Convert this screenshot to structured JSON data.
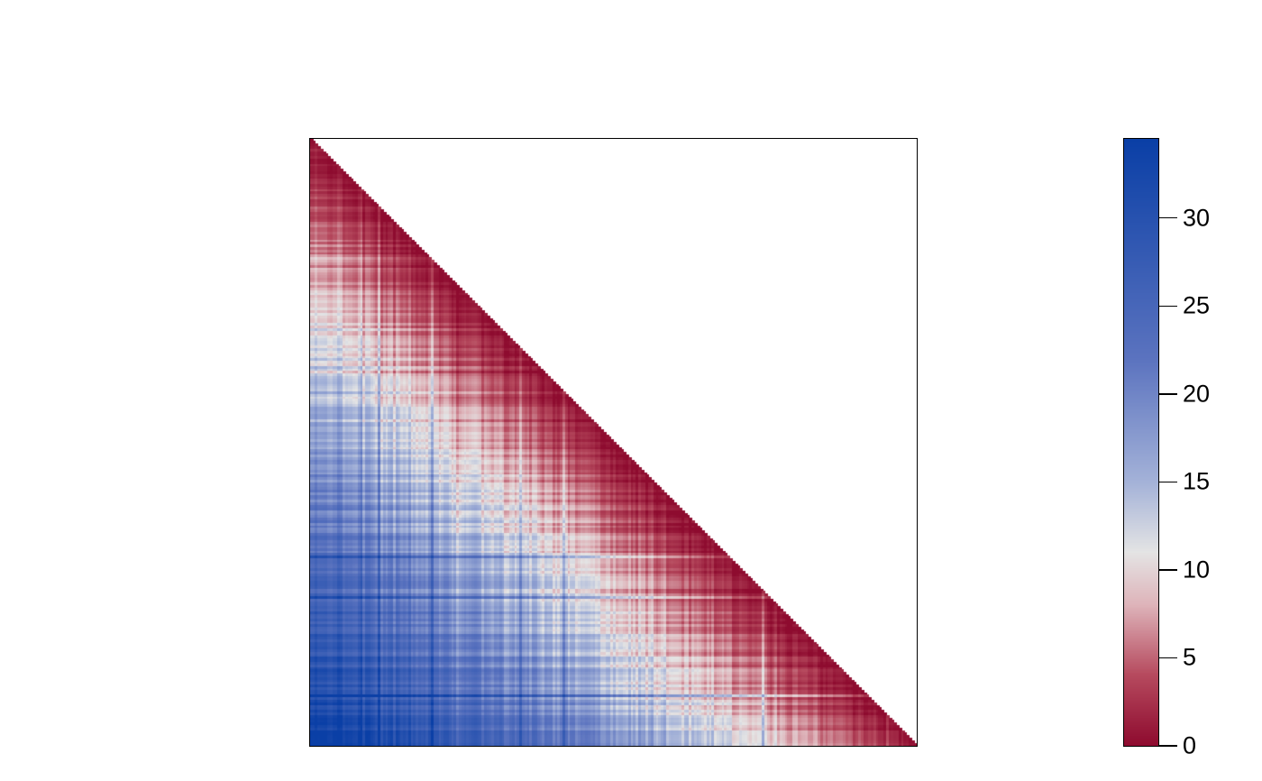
{
  "chart_data": {
    "type": "heatmap",
    "title": "",
    "xlabel": "",
    "ylabel": "",
    "matrix_shape": "lower-triangular",
    "n_cells": 240,
    "value_range": [
      0,
      34.5
    ],
    "description_of_values": "distance from diagonal; values near 0 along the diagonal (red), increasing to ~34 at bottom-left corner (blue)",
    "colorbar": {
      "ticks": [
        0,
        5,
        10,
        15,
        20,
        25,
        30
      ],
      "tick_labels": [
        "0",
        "5",
        "10",
        "15",
        "20",
        "25",
        "30"
      ],
      "limits": [
        0,
        34.5
      ],
      "palette": [
        {
          "value": 0,
          "color": "#8e0b2f"
        },
        {
          "value": 4,
          "color": "#b64a5e"
        },
        {
          "value": 8,
          "color": "#deb4ba"
        },
        {
          "value": 11,
          "color": "#e4e4e4"
        },
        {
          "value": 15,
          "color": "#a4b2d8"
        },
        {
          "value": 22,
          "color": "#5b73bf"
        },
        {
          "value": 34.5,
          "color": "#0a3fa6"
        }
      ]
    }
  }
}
